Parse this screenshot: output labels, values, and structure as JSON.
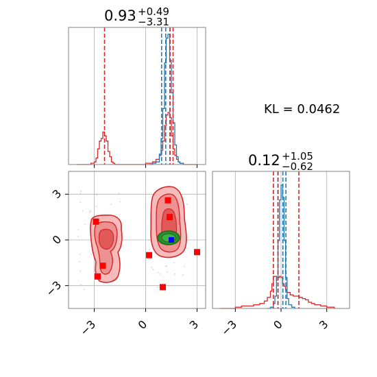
{
  "chart_data": {
    "type": "corner",
    "params": [
      {
        "title": {
          "main": "0.93",
          "sup": "+0.49",
          "sub": "−3.31"
        },
        "xlim": [
          -4.5,
          3.5
        ],
        "quantile_lines": {
          "blue": [
            0.93,
            1.17,
            1.42
          ],
          "red": [
            -2.4,
            1.42,
            1.6
          ]
        }
      },
      {
        "title": {
          "main": "0.12",
          "sup": "+1.05",
          "sub": "−0.62"
        },
        "xlim": [
          -4.5,
          4.5
        ],
        "quantile_lines": {
          "blue": [
            -0.2,
            0.12,
            0.32
          ],
          "red": [
            -0.5,
            -0.2,
            1.17
          ]
        }
      }
    ],
    "annotation": {
      "text": "KL = 0.0462"
    },
    "x_ticks": [
      -3,
      0,
      3
    ],
    "y_ticks": [
      3,
      0,
      -3
    ],
    "tick_labels": [
      "−3",
      "0",
      "3"
    ],
    "grid": true,
    "series": [
      {
        "color": "#1f77b4"
      },
      {
        "color": "#d62728"
      }
    ],
    "colors": {
      "blue": "#1f77b4",
      "red": "#d62728",
      "green": "#228b22",
      "marker": "#ff0000",
      "grid": "#b0b0b0"
    },
    "hist_top_blue": {
      "x": [
        0.2,
        0.4,
        0.6,
        0.8,
        0.9,
        1.0,
        1.1,
        1.2,
        1.3,
        1.4,
        1.5,
        1.6,
        1.7,
        1.8,
        1.9,
        2.0,
        2.2
      ],
      "y": [
        0.0,
        0.01,
        0.02,
        0.08,
        0.2,
        0.43,
        0.78,
        0.97,
        1.0,
        0.8,
        0.55,
        0.32,
        0.15,
        0.06,
        0.02,
        0.01,
        0.0
      ]
    },
    "hist_top_red": {
      "x": [
        -4.0,
        -3.6,
        -3.2,
        -3.0,
        -2.9,
        -2.8,
        -2.7,
        -2.6,
        -2.5,
        -2.4,
        -2.3,
        -2.2,
        -2.1,
        -2.0,
        -1.9,
        -1.8,
        -1.6,
        -1.2,
        -0.5,
        0.0,
        0.2,
        0.4,
        0.6,
        0.8,
        0.9,
        1.0,
        1.1,
        1.2,
        1.3,
        1.4,
        1.5,
        1.6,
        1.7,
        1.8,
        1.9,
        2.0,
        2.2,
        2.5,
        3.0
      ],
      "y": [
        0.0,
        0.0,
        0.01,
        0.02,
        0.05,
        0.12,
        0.18,
        0.2,
        0.25,
        0.22,
        0.18,
        0.1,
        0.06,
        0.02,
        0.01,
        0.0,
        0.0,
        0.0,
        0.0,
        0.01,
        0.01,
        0.02,
        0.04,
        0.07,
        0.11,
        0.18,
        0.3,
        0.38,
        0.4,
        0.36,
        0.22,
        0.12,
        0.07,
        0.04,
        0.02,
        0.01,
        0.0,
        0.0,
        0.0
      ]
    },
    "hist_right_blue": {
      "x": [
        -0.9,
        -0.7,
        -0.5,
        -0.4,
        -0.3,
        -0.2,
        -0.1,
        0.0,
        0.1,
        0.2,
        0.3,
        0.4,
        0.5,
        0.7,
        0.9
      ],
      "y": [
        0.0,
        0.01,
        0.04,
        0.1,
        0.25,
        0.55,
        0.88,
        1.0,
        0.9,
        0.55,
        0.25,
        0.08,
        0.03,
        0.01,
        0.0
      ]
    },
    "hist_right_red": {
      "x": [
        -4.0,
        -3.0,
        -2.6,
        -2.2,
        -1.8,
        -1.4,
        -1.1,
        -0.9,
        -0.7,
        -0.6,
        -0.5,
        -0.4,
        -0.3,
        -0.2,
        -0.1,
        0.0,
        0.1,
        0.2,
        0.3,
        0.4,
        0.6,
        0.8,
        1.0,
        1.2,
        1.4,
        1.6,
        1.8,
        2.0,
        2.2,
        2.6,
        3.0,
        3.5
      ],
      "y": [
        0.0,
        0.01,
        0.02,
        0.02,
        0.03,
        0.04,
        0.06,
        0.09,
        0.14,
        0.2,
        0.26,
        0.26,
        0.23,
        0.25,
        0.26,
        0.25,
        0.2,
        0.18,
        0.15,
        0.13,
        0.11,
        0.1,
        0.1,
        0.09,
        0.08,
        0.07,
        0.05,
        0.04,
        0.03,
        0.02,
        0.01,
        0.0
      ]
    },
    "scatter_markers": [
      {
        "x": -2.9,
        "y": 1.2
      },
      {
        "x": -2.5,
        "y": -1.7
      },
      {
        "x": -2.8,
        "y": -2.4
      },
      {
        "x": 0.2,
        "y": -1.0
      },
      {
        "x": 1.0,
        "y": -3.1
      },
      {
        "x": 1.3,
        "y": 2.6
      },
      {
        "x": 1.4,
        "y": 1.5
      },
      {
        "x": 3.0,
        "y": -0.8
      }
    ],
    "truth_point": {
      "x": 1.5,
      "y": 0.0
    }
  }
}
